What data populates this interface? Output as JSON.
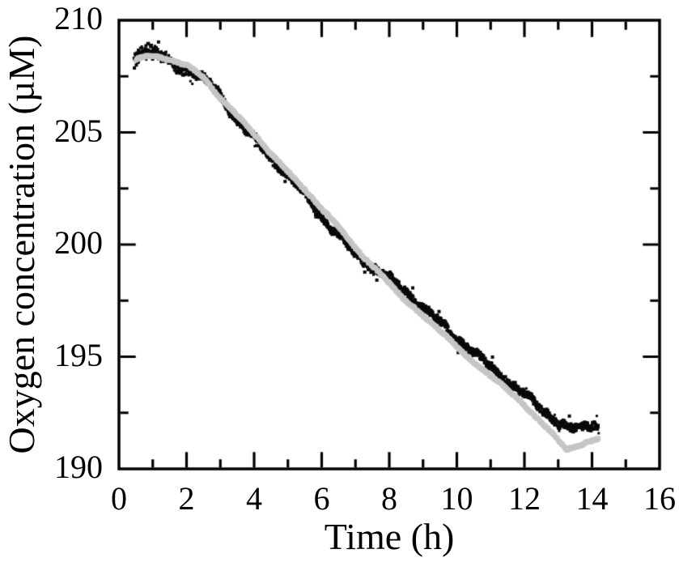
{
  "chart_data": {
    "type": "scatter",
    "title": "",
    "xlabel": "Time (h)",
    "ylabel": "Oxygen concentration (µM)",
    "xlim": [
      0,
      16
    ],
    "ylim": [
      190,
      210
    ],
    "x_major_ticks": [
      0,
      2,
      4,
      6,
      8,
      10,
      12,
      14,
      16
    ],
    "x_tick_labels": [
      "0",
      "2",
      "4",
      "6",
      "8",
      "10",
      "12",
      "14",
      "16"
    ],
    "x_minor_step": 1,
    "y_major_ticks": [
      190,
      195,
      200,
      205,
      210
    ],
    "y_tick_labels": [
      "190",
      "195",
      "200",
      "205",
      "210"
    ],
    "y_minor_step": 2.5,
    "grid": false,
    "legend": "none",
    "frame": {
      "color": "#000000",
      "ticks_inward": true,
      "mirror_ticks": true
    },
    "series": [
      {
        "name": "black-noisy-measurement",
        "color": "#0a0a0a",
        "marker": "square",
        "marker_px": 3,
        "t_start": 0.45,
        "t_end": 14.2,
        "point_step_h": 0.007,
        "trend_t": [
          0.45,
          0.7,
          1.0,
          1.4,
          1.8,
          2.2,
          2.6,
          3.0,
          3.5,
          4.0,
          4.5,
          5.0,
          5.5,
          6.0,
          6.5,
          7.0,
          7.5,
          8.0,
          8.5,
          9.0,
          9.5,
          10.0,
          10.5,
          11.0,
          11.5,
          12.0,
          12.5,
          13.0,
          13.35,
          13.7,
          14.0,
          14.2
        ],
        "trend_y": [
          208.2,
          208.75,
          208.6,
          208.25,
          207.8,
          207.7,
          207.3,
          206.6,
          205.55,
          204.75,
          203.85,
          203.1,
          202.2,
          201.25,
          200.4,
          199.55,
          199.0,
          198.5,
          197.9,
          197.2,
          196.5,
          195.85,
          195.2,
          194.55,
          193.9,
          193.3,
          192.7,
          192.05,
          191.75,
          191.85,
          192.0,
          192.0
        ],
        "noise_jitter": 0.17,
        "wander_amp": 0.09,
        "outlier_prob": 0.035,
        "outlier_amp": 0.45,
        "extra_start_spread_until": 1.9
      },
      {
        "name": "gray-smoothed-reference",
        "color": "#c6c6c6",
        "marker": "square",
        "marker_px": 5,
        "t_start": 0.5,
        "t_end": 14.2,
        "point_step_h": 0.008,
        "trend_t": [
          0.5,
          0.8,
          1.2,
          1.6,
          2.0,
          2.5,
          2.9,
          3.5,
          3.9,
          4.5,
          4.9,
          5.5,
          6.05,
          6.5,
          7.25,
          8.0,
          8.45,
          9.0,
          9.65,
          10.35,
          11.15,
          11.95,
          12.75,
          13.25,
          13.6,
          14.2
        ],
        "trend_y": [
          208.25,
          208.4,
          208.35,
          208.2,
          208.0,
          207.45,
          206.7,
          205.75,
          205.1,
          204.05,
          203.4,
          202.45,
          201.5,
          200.8,
          199.4,
          198.3,
          197.55,
          196.8,
          196.0,
          194.9,
          194.0,
          192.9,
          191.7,
          190.85,
          191.05,
          191.35
        ],
        "noise_jitter": 0.05,
        "wander_amp": 0.02,
        "outlier_prob": 0,
        "outlier_amp": 0,
        "extra_start_spread_until": 0
      }
    ]
  }
}
